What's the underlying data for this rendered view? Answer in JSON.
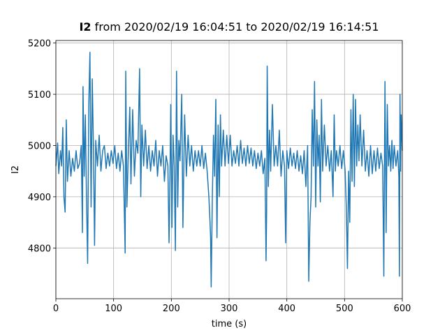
{
  "chart_data": {
    "type": "line",
    "title_signal": "I2",
    "title_range": "from 2020/02/19 16:04:51 to 2020/02/19 16:14:51",
    "xlabel": "time (s)",
    "ylabel": "I2",
    "xlim": [
      0,
      600
    ],
    "xticks": [
      0,
      100,
      200,
      300,
      400,
      500,
      600
    ],
    "ylim": [
      4701,
      5205
    ],
    "yticks": [
      4800,
      4900,
      5000,
      5100,
      5200
    ],
    "grid": true,
    "color": "#1f77b4",
    "x": [
      0,
      3,
      5,
      8,
      10,
      12,
      14,
      16,
      18,
      20,
      23,
      26,
      29,
      32,
      35,
      38,
      41,
      44,
      46,
      47,
      49,
      51,
      53,
      55,
      57,
      59,
      61,
      63,
      65,
      67,
      69,
      72,
      75,
      78,
      81,
      84,
      87,
      90,
      93,
      96,
      99,
      102,
      105,
      108,
      111,
      114,
      117,
      120,
      121,
      123,
      125,
      128,
      130,
      133,
      136,
      139,
      142,
      145,
      147,
      149,
      152,
      155,
      158,
      161,
      164,
      167,
      170,
      173,
      176,
      179,
      182,
      185,
      188,
      191,
      194,
      196,
      197,
      199,
      201,
      203,
      205,
      207,
      209,
      211,
      213,
      215,
      218,
      220,
      223,
      226,
      229,
      232,
      235,
      238,
      241,
      244,
      247,
      250,
      253,
      256,
      259,
      262,
      265,
      267,
      268,
      269,
      271,
      273,
      275,
      277,
      279,
      281,
      283,
      285,
      287,
      290,
      293,
      296,
      299,
      302,
      305,
      308,
      311,
      314,
      317,
      320,
      323,
      326,
      329,
      332,
      335,
      338,
      341,
      344,
      347,
      350,
      353,
      356,
      359,
      362,
      364,
      365,
      366,
      368,
      370,
      372,
      375,
      378,
      381,
      384,
      387,
      390,
      393,
      396,
      398,
      400,
      403,
      406,
      409,
      412,
      415,
      418,
      421,
      424,
      427,
      430,
      433,
      436,
      438,
      440,
      442,
      444,
      446,
      448,
      450,
      452,
      454,
      456,
      458,
      460,
      462,
      465,
      468,
      471,
      474,
      477,
      480,
      482,
      484,
      486,
      489,
      492,
      495,
      498,
      501,
      503,
      505,
      507,
      509,
      511,
      513,
      515,
      517,
      519,
      521,
      523,
      525,
      527,
      530,
      533,
      536,
      539,
      542,
      545,
      548,
      551,
      554,
      557,
      560,
      563,
      566,
      568,
      569,
      570,
      572,
      574,
      576,
      578,
      580,
      582,
      584,
      586,
      589,
      592,
      594,
      595,
      596,
      597,
      598,
      600
    ],
    "values": [
      4960,
      5005,
      4945,
      4990,
      4960,
      5035,
      4900,
      4870,
      5050,
      4930,
      4990,
      4940,
      4975,
      4950,
      4990,
      4955,
      4965,
      5000,
      4830,
      5115,
      4940,
      5060,
      4900,
      4770,
      5080,
      5182,
      4880,
      5130,
      5000,
      4805,
      5010,
      4960,
      5020,
      4950,
      4990,
      5000,
      4955,
      4985,
      4960,
      4990,
      4965,
      5000,
      4955,
      4985,
      4950,
      4990,
      4960,
      4790,
      5145,
      4880,
      4965,
      5075,
      4925,
      5070,
      4940,
      5010,
      4985,
      5150,
      4900,
      5040,
      4960,
      5030,
      4955,
      5000,
      4950,
      4990,
      4960,
      5010,
      4940,
      4990,
      4960,
      5000,
      4930,
      4980,
      4960,
      4810,
      4880,
      5080,
      4840,
      5020,
      4960,
      4795,
      5145,
      4880,
      5010,
      4970,
      5100,
      4840,
      5060,
      4940,
      5020,
      4960,
      5000,
      4950,
      4990,
      4960,
      4990,
      4960,
      5000,
      4955,
      4985,
      4950,
      4900,
      4850,
      4820,
      4724,
      4900,
      5020,
      4940,
      5090,
      4820,
      5040,
      4900,
      5060,
      4960,
      5030,
      4960,
      5020,
      4965,
      5020,
      4960,
      4990,
      4965,
      5000,
      4960,
      5010,
      4965,
      4995,
      4960,
      5000,
      4965,
      4995,
      4960,
      4990,
      4955,
      4985,
      4960,
      4990,
      4945,
      4975,
      4775,
      4870,
      5155,
      4920,
      5030,
      4950,
      5080,
      4960,
      5000,
      4960,
      5030,
      4940,
      4990,
      4960,
      4810,
      4990,
      4955,
      4995,
      4960,
      4985,
      4955,
      4990,
      4950,
      4980,
      4945,
      4990,
      4920,
      5000,
      4735,
      4850,
      4900,
      5070,
      4960,
      5125,
      4880,
      5050,
      4960,
      5020,
      4890,
      5090,
      4950,
      5040,
      4960,
      5000,
      4950,
      4990,
      4900,
      5060,
      4950,
      4990,
      4960,
      5000,
      4955,
      4990,
      4950,
      4880,
      4760,
      4950,
      4850,
      5070,
      4930,
      5100,
      4920,
      5090,
      4960,
      5040,
      4970,
      5060,
      4960,
      5030,
      4950,
      4990,
      4940,
      5000,
      4945,
      4990,
      4950,
      4995,
      4955,
      4985,
      4960,
      4745,
      4950,
      5125,
      4830,
      5080,
      4960,
      5000,
      4950,
      5010,
      4955,
      5000,
      4960,
      4990,
      4940,
      4745,
      5100,
      4950,
      5060,
      4990
    ]
  }
}
